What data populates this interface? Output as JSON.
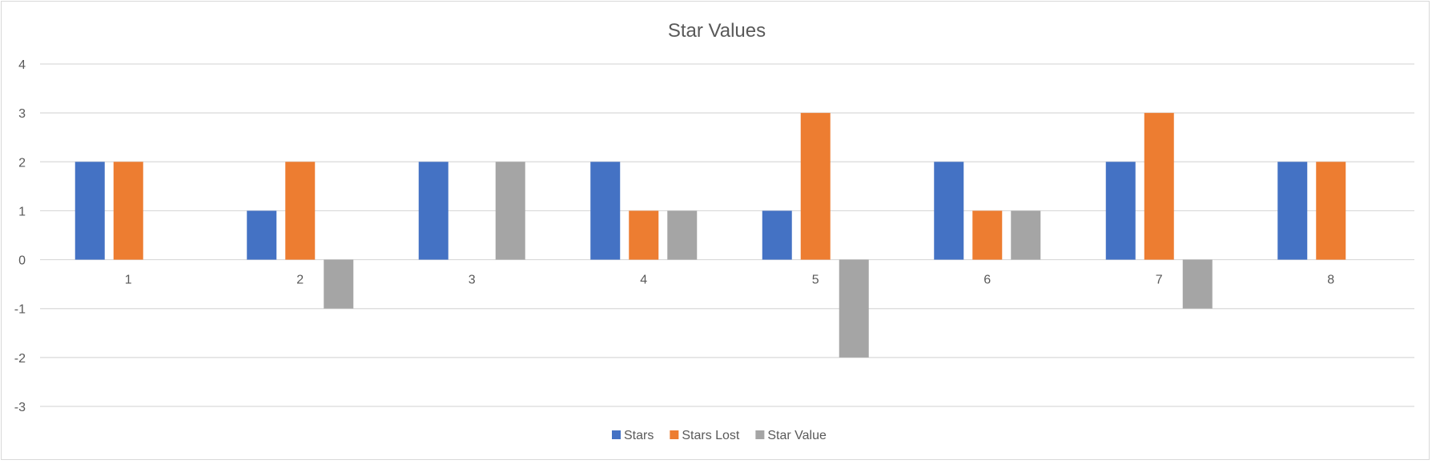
{
  "chart_data": {
    "type": "bar",
    "title": "Star Values",
    "xlabel": "",
    "ylabel": "",
    "categories": [
      "1",
      "2",
      "3",
      "4",
      "5",
      "6",
      "7",
      "8"
    ],
    "series": [
      {
        "name": "Stars",
        "color": "#4472C4",
        "values": [
          2,
          1,
          2,
          2,
          1,
          2,
          2,
          2
        ]
      },
      {
        "name": "Stars Lost",
        "color": "#ED7D31",
        "values": [
          2,
          2,
          0,
          1,
          3,
          1,
          3,
          2
        ]
      },
      {
        "name": "Star Value",
        "color": "#A5A5A5",
        "values": [
          0,
          -1,
          2,
          1,
          -2,
          1,
          -1,
          0
        ]
      }
    ],
    "ylim": [
      -3,
      4
    ],
    "yticks": [
      "4",
      "3",
      "2",
      "1",
      "0",
      "-1",
      "-2",
      "-3"
    ],
    "grid": true,
    "legend_position": "bottom"
  }
}
